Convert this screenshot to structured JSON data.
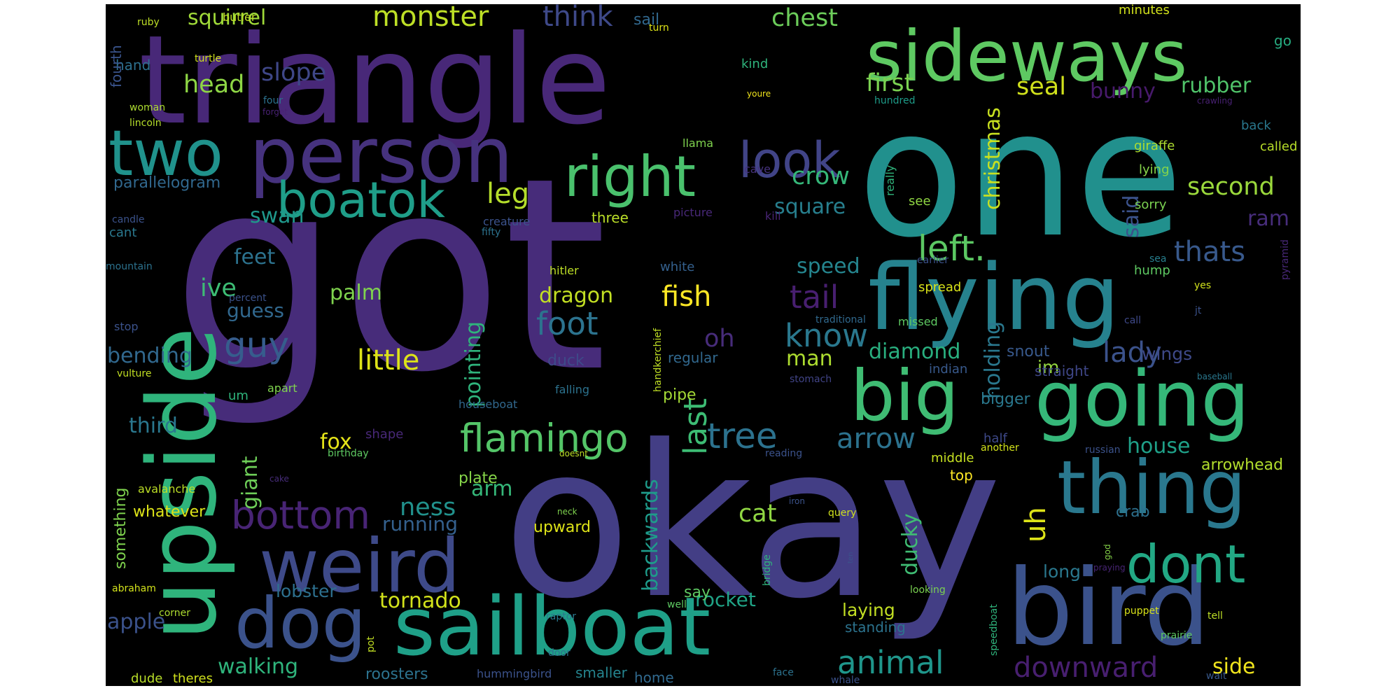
{
  "wordcloud": {
    "background": "#000000",
    "palette": "viridis",
    "words": [
      {
        "text": "got",
        "color": "#472c7a"
      },
      {
        "text": "okay",
        "color": "#433e85"
      },
      {
        "text": "one",
        "color": "#21908d"
      },
      {
        "text": "triangle",
        "color": "#482878"
      },
      {
        "text": "upside",
        "color": "#2fb47c"
      },
      {
        "text": "sailboat",
        "color": "#1fa088"
      },
      {
        "text": "bird",
        "color": "#3b528b"
      },
      {
        "text": "flying",
        "color": "#26828e"
      },
      {
        "text": "person",
        "color": "#46327e"
      },
      {
        "text": "sideways",
        "color": "#5ec962"
      },
      {
        "text": "going",
        "color": "#35b779"
      },
      {
        "text": "thing",
        "color": "#2a788e"
      },
      {
        "text": "weird",
        "color": "#3e4a89"
      },
      {
        "text": "big",
        "color": "#3fbc73"
      },
      {
        "text": "two",
        "color": "#20928c"
      },
      {
        "text": "dog",
        "color": "#3b528b"
      },
      {
        "text": "boatok",
        "color": "#1f9e89"
      },
      {
        "text": "right",
        "color": "#4ac16d"
      },
      {
        "text": "look",
        "color": "#414487"
      },
      {
        "text": "dont",
        "color": "#22a884"
      },
      {
        "text": "bottom",
        "color": "#482475"
      },
      {
        "text": "flamingo",
        "color": "#54c568"
      },
      {
        "text": "animal",
        "color": "#1f968b"
      },
      {
        "text": "downward",
        "color": "#481f70"
      },
      {
        "text": "tree",
        "color": "#2c728e"
      },
      {
        "text": "left.",
        "color": "#5cc863"
      },
      {
        "text": "monster",
        "color": "#bddf26"
      },
      {
        "text": "think",
        "color": "#3e4989"
      },
      {
        "text": "chest",
        "color": "#6ccd5a"
      },
      {
        "text": "squirrel",
        "color": "#a0da39"
      },
      {
        "text": "slope",
        "color": "#3f4788"
      },
      {
        "text": "head",
        "color": "#8ed645"
      },
      {
        "text": "first",
        "color": "#7ad151"
      },
      {
        "text": "seal",
        "color": "#d0e11c"
      },
      {
        "text": "bunny",
        "color": "#481a6c"
      },
      {
        "text": "rubber",
        "color": "#50c46a"
      },
      {
        "text": "leg",
        "color": "#b5de2b"
      },
      {
        "text": "crow",
        "color": "#35b779"
      },
      {
        "text": "square",
        "color": "#277f8e"
      },
      {
        "text": "second",
        "color": "#9bd93c"
      },
      {
        "text": "ram",
        "color": "#472d7b"
      },
      {
        "text": "parallelogram",
        "color": "#31688e"
      },
      {
        "text": "swan",
        "color": "#1f988b"
      },
      {
        "text": "feet",
        "color": "#2c728e"
      },
      {
        "text": "ive",
        "color": "#3dbc74"
      },
      {
        "text": "palm",
        "color": "#7fd34e"
      },
      {
        "text": "guess",
        "color": "#31688e"
      },
      {
        "text": "guy",
        "color": "#365d8d"
      },
      {
        "text": "bending",
        "color": "#31688e"
      },
      {
        "text": "third",
        "color": "#2a778e"
      },
      {
        "text": "giant",
        "color": "#6ece58"
      },
      {
        "text": "foot",
        "color": "#2c738e"
      },
      {
        "text": "little",
        "color": "#dde318"
      },
      {
        "text": "fish",
        "color": "#fde725"
      },
      {
        "text": "tail",
        "color": "#481f70"
      },
      {
        "text": "know",
        "color": "#2a788e"
      },
      {
        "text": "oh",
        "color": "#472c7a"
      },
      {
        "text": "thats",
        "color": "#38598c"
      },
      {
        "text": "said",
        "color": "#3b528b"
      },
      {
        "text": "holding",
        "color": "#2a788e"
      },
      {
        "text": "christmas",
        "color": "#c8e020"
      },
      {
        "text": "last",
        "color": "#3dbc74"
      },
      {
        "text": "lady",
        "color": "#3b528b"
      },
      {
        "text": "man",
        "color": "#addc30"
      },
      {
        "text": "diamond",
        "color": "#29af7f"
      },
      {
        "text": "speed",
        "color": "#25858e"
      },
      {
        "text": "arrow",
        "color": "#2c728e"
      },
      {
        "text": "house",
        "color": "#1fa088"
      },
      {
        "text": "arrowhead",
        "color": "#b2dd2d"
      },
      {
        "text": "wings",
        "color": "#3e4989"
      },
      {
        "text": "im",
        "color": "#95d840"
      },
      {
        "text": "uh",
        "color": "#dde318"
      },
      {
        "text": "pointing",
        "color": "#2fb47c"
      },
      {
        "text": "dragon",
        "color": "#c2df23"
      },
      {
        "text": "arm",
        "color": "#35b779"
      },
      {
        "text": "fox",
        "color": "#e5e419"
      },
      {
        "text": "cat",
        "color": "#90d743"
      },
      {
        "text": "ness",
        "color": "#21918c"
      },
      {
        "text": "running",
        "color": "#34608d"
      },
      {
        "text": "backwards",
        "color": "#1e9b8a"
      },
      {
        "text": "ducky",
        "color": "#3fbc73"
      },
      {
        "text": "crab",
        "color": "#2d708e"
      },
      {
        "text": "long",
        "color": "#2a788e"
      },
      {
        "text": "tornado",
        "color": "#d2e21b"
      },
      {
        "text": "whatever",
        "color": "#dde318"
      },
      {
        "text": "something",
        "color": "#7fd34e"
      },
      {
        "text": "apple",
        "color": "#3b528b"
      },
      {
        "text": "lobster",
        "color": "#2d708e"
      },
      {
        "text": "walking",
        "color": "#2fb47c"
      },
      {
        "text": "rocket",
        "color": "#20a386"
      },
      {
        "text": "laying",
        "color": "#c2df23"
      },
      {
        "text": "say",
        "color": "#5ec962"
      },
      {
        "text": "side",
        "color": "#f1e51d"
      },
      {
        "text": "roosters",
        "color": "#2c728e"
      },
      {
        "text": "dude",
        "color": "#b8de29"
      },
      {
        "text": "theres",
        "color": "#d0e11c"
      },
      {
        "text": "home",
        "color": "#30698e"
      },
      {
        "text": "smaller",
        "color": "#25848e"
      },
      {
        "text": "standing",
        "color": "#2c738e"
      },
      {
        "text": "upward",
        "color": "#dde318"
      },
      {
        "text": "plate",
        "color": "#86d549"
      },
      {
        "text": "pipe",
        "color": "#a5db36"
      },
      {
        "text": "regular",
        "color": "#31688e"
      },
      {
        "text": "straight",
        "color": "#3f4788"
      },
      {
        "text": "bigger",
        "color": "#2a788e"
      },
      {
        "text": "snout",
        "color": "#38598c"
      },
      {
        "text": "middle",
        "color": "#c5e021"
      },
      {
        "text": "top",
        "color": "#fde725"
      },
      {
        "text": "half",
        "color": "#3e4989"
      },
      {
        "text": "hump",
        "color": "#5ec962"
      },
      {
        "text": "spread",
        "color": "#d8e219"
      },
      {
        "text": "white",
        "color": "#34608d"
      },
      {
        "text": "three",
        "color": "#bade28"
      },
      {
        "text": "duck",
        "color": "#3e4a89"
      },
      {
        "text": "hand",
        "color": "#2d708e"
      },
      {
        "text": "fourth",
        "color": "#3a548c"
      },
      {
        "text": "turtle",
        "color": "#d0e11c"
      },
      {
        "text": "butler",
        "color": "#c0df25"
      },
      {
        "text": "ruby",
        "color": "#bddf26"
      },
      {
        "text": "turn",
        "color": "#dde318"
      },
      {
        "text": "sail",
        "color": "#31688e"
      },
      {
        "text": "minutes",
        "color": "#d2e21b"
      },
      {
        "text": "go",
        "color": "#27ad81"
      },
      {
        "text": "kind",
        "color": "#2fb47c"
      },
      {
        "text": "youre",
        "color": "#f1e51d"
      },
      {
        "text": "hundred",
        "color": "#1e9c89"
      },
      {
        "text": "crawling",
        "color": "#482173"
      },
      {
        "text": "back",
        "color": "#2a788e"
      },
      {
        "text": "called",
        "color": "#b8de29"
      },
      {
        "text": "giraffe",
        "color": "#addc30"
      },
      {
        "text": "lying",
        "color": "#86d549"
      },
      {
        "text": "sorry",
        "color": "#7ad151"
      },
      {
        "text": "really",
        "color": "#2fb47c"
      },
      {
        "text": "see",
        "color": "#90d743"
      },
      {
        "text": "llama",
        "color": "#7fd34e"
      },
      {
        "text": "cave",
        "color": "#46327e"
      },
      {
        "text": "creature",
        "color": "#3b528b"
      },
      {
        "text": "fifty",
        "color": "#2c728e"
      },
      {
        "text": "picture",
        "color": "#482878"
      },
      {
        "text": "kill",
        "color": "#482475"
      },
      {
        "text": "hitler",
        "color": "#bddf26"
      },
      {
        "text": "earlier",
        "color": "#3b528b"
      },
      {
        "text": "sea",
        "color": "#277f8e"
      },
      {
        "text": "yes",
        "color": "#d0e11c"
      },
      {
        "text": "pyramid",
        "color": "#482878"
      },
      {
        "text": "jt",
        "color": "#3b528b"
      },
      {
        "text": "call",
        "color": "#3e4989"
      },
      {
        "text": "missed",
        "color": "#5ec962"
      },
      {
        "text": "traditional",
        "color": "#30698e"
      },
      {
        "text": "handkerchief",
        "color": "#c0df25"
      },
      {
        "text": "indian",
        "color": "#38598c"
      },
      {
        "text": "baseball",
        "color": "#2a788e"
      },
      {
        "text": "stomach",
        "color": "#414487"
      },
      {
        "text": "falling",
        "color": "#2c728e"
      },
      {
        "text": "houseboat",
        "color": "#31688e"
      },
      {
        "text": "birthday",
        "color": "#5ec962"
      },
      {
        "text": "reading",
        "color": "#3b528b"
      },
      {
        "text": "doesnt",
        "color": "#bddf26"
      },
      {
        "text": "another",
        "color": "#d2e21b"
      },
      {
        "text": "russian",
        "color": "#3b528b"
      },
      {
        "text": "shape",
        "color": "#482878"
      },
      {
        "text": "woman",
        "color": "#addc30"
      },
      {
        "text": "lincoln",
        "color": "#b5de2b"
      },
      {
        "text": "four",
        "color": "#2c728e"
      },
      {
        "text": "forget",
        "color": "#482173"
      },
      {
        "text": "candle",
        "color": "#3b528b"
      },
      {
        "text": "cant",
        "color": "#2a788e"
      },
      {
        "text": "mountain",
        "color": "#2c728e"
      },
      {
        "text": "percent",
        "color": "#3b528b"
      },
      {
        "text": "um",
        "color": "#2fb47c"
      },
      {
        "text": "stop",
        "color": "#3b528b"
      },
      {
        "text": "vulture",
        "color": "#c2df23"
      },
      {
        "text": "apart",
        "color": "#7fd34e"
      },
      {
        "text": "avalanche",
        "color": "#bddf26"
      },
      {
        "text": "cake",
        "color": "#472c7a"
      },
      {
        "text": "abraham",
        "color": "#d2e21b"
      },
      {
        "text": "corner",
        "color": "#addc30"
      },
      {
        "text": "neck",
        "color": "#7fd34e"
      },
      {
        "text": "iron",
        "color": "#3b528b"
      },
      {
        "text": "query",
        "color": "#d0e11c"
      },
      {
        "text": "bridge",
        "color": "#2fb47c"
      },
      {
        "text": "ten",
        "color": "#3b528b"
      },
      {
        "text": "well",
        "color": "#5ec962"
      },
      {
        "text": "raptor",
        "color": "#2a788e"
      },
      {
        "text": "door",
        "color": "#2c728e"
      },
      {
        "text": "pot",
        "color": "#c2df23"
      },
      {
        "text": "hummingbird",
        "color": "#3b528b"
      },
      {
        "text": "face",
        "color": "#2c728e"
      },
      {
        "text": "whale",
        "color": "#3b528b"
      },
      {
        "text": "speedboat",
        "color": "#2fb47c"
      },
      {
        "text": "looking",
        "color": "#7ad151"
      },
      {
        "text": "praying",
        "color": "#482475"
      },
      {
        "text": "god",
        "color": "#86d549"
      },
      {
        "text": "puppet",
        "color": "#d8e219"
      },
      {
        "text": "prairie",
        "color": "#5ec962"
      },
      {
        "text": "tell",
        "color": "#bddf26"
      },
      {
        "text": "wait",
        "color": "#38598c"
      }
    ]
  }
}
